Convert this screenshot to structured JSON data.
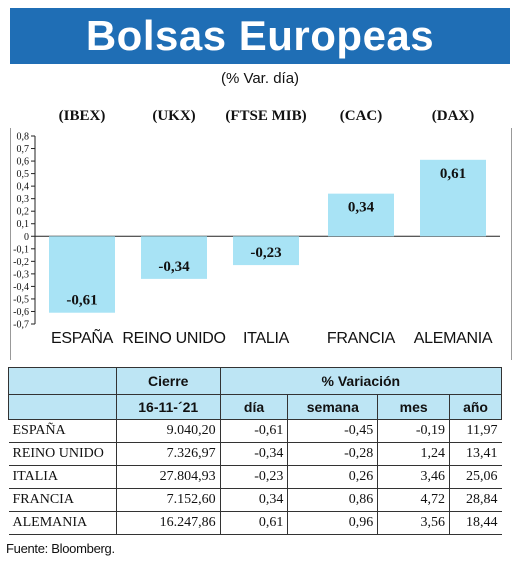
{
  "header": {
    "title": "Bolsas Europeas",
    "subtitle": "(% Var. día)"
  },
  "chart_data": {
    "type": "bar",
    "indices": [
      "(IBEX)",
      "(UKX)",
      "(FTSE MIB)",
      "(CAC)",
      "(DAX)"
    ],
    "categories": [
      "ESPAÑA",
      "REINO UNIDO",
      "ITALIA",
      "FRANCIA",
      "ALEMANIA"
    ],
    "values": [
      -0.61,
      -0.34,
      -0.23,
      0.34,
      0.61
    ],
    "value_labels": [
      "-0,61",
      "-0,34",
      "-0,23",
      "0,34",
      "0,61"
    ],
    "ylim": [
      -0.7,
      0.8
    ],
    "yticks": [
      0.8,
      0.7,
      0.6,
      0.5,
      0.4,
      0.3,
      0.2,
      0.1,
      0,
      -0.1,
      -0.2,
      -0.3,
      -0.4,
      -0.5,
      -0.6,
      -0.7
    ],
    "ytick_labels": [
      "0,8",
      "0,7",
      "0,6",
      "0,5",
      "0,4",
      "0,3",
      "0,2",
      "0,1",
      "0",
      "-0,1",
      "-0,2",
      "-0,3",
      "-0,4",
      "-0,5",
      "-0,6",
      "-0,7"
    ],
    "bar_color": "#a8e3f5",
    "grid": false
  },
  "table": {
    "group_headers": [
      "Cierre",
      "% Variación"
    ],
    "columns": [
      "16-11-´21",
      "día",
      "semana",
      "mes",
      "año"
    ],
    "rows": [
      {
        "country": "ESPAÑA",
        "cierre": "9.040,20",
        "dia": "-0,61",
        "semana": "-0,45",
        "mes": "-0,19",
        "ano": "11,97"
      },
      {
        "country": "REINO UNIDO",
        "cierre": "7.326,97",
        "dia": "-0,34",
        "semana": "-0,28",
        "mes": "1,24",
        "ano": "13,41"
      },
      {
        "country": "ITALIA",
        "cierre": "27.804,93",
        "dia": "-0,23",
        "semana": "0,26",
        "mes": "3,46",
        "ano": "25,06"
      },
      {
        "country": "FRANCIA",
        "cierre": "7.152,60",
        "dia": "0,34",
        "semana": "0,86",
        "mes": "4,72",
        "ano": "28,84"
      },
      {
        "country": "ALEMANIA",
        "cierre": "16.247,86",
        "dia": "0,61",
        "semana": "0,96",
        "mes": "3,56",
        "ano": "18,44"
      }
    ]
  },
  "footer": {
    "source": "Fuente: Bloomberg."
  }
}
